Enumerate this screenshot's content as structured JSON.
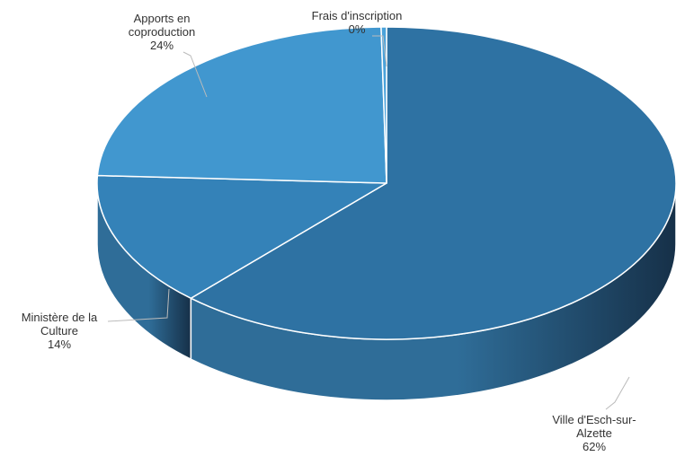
{
  "chart_data": {
    "type": "pie",
    "style": "3d",
    "title": "",
    "slices": [
      {
        "label_lines": [
          "Ville d'Esch-sur-",
          "Alzette"
        ],
        "percent_label": "62%",
        "value": 62,
        "color": "#2e72a3"
      },
      {
        "label_lines": [
          "Ministère de la",
          "Culture"
        ],
        "percent_label": "14%",
        "value": 14,
        "color": "#3482b8"
      },
      {
        "label_lines": [
          "Apports en",
          "coproduction"
        ],
        "percent_label": "24%",
        "value": 24,
        "color": "#4197cf"
      },
      {
        "label_lines": [
          "Frais d'inscription"
        ],
        "percent_label": "0%",
        "value": 0.3,
        "color": "#4aa2da"
      }
    ],
    "edge_color": "#ffffff",
    "label_color": "#333333",
    "side_dark": "#163048",
    "side_light": "#2f6d98"
  }
}
